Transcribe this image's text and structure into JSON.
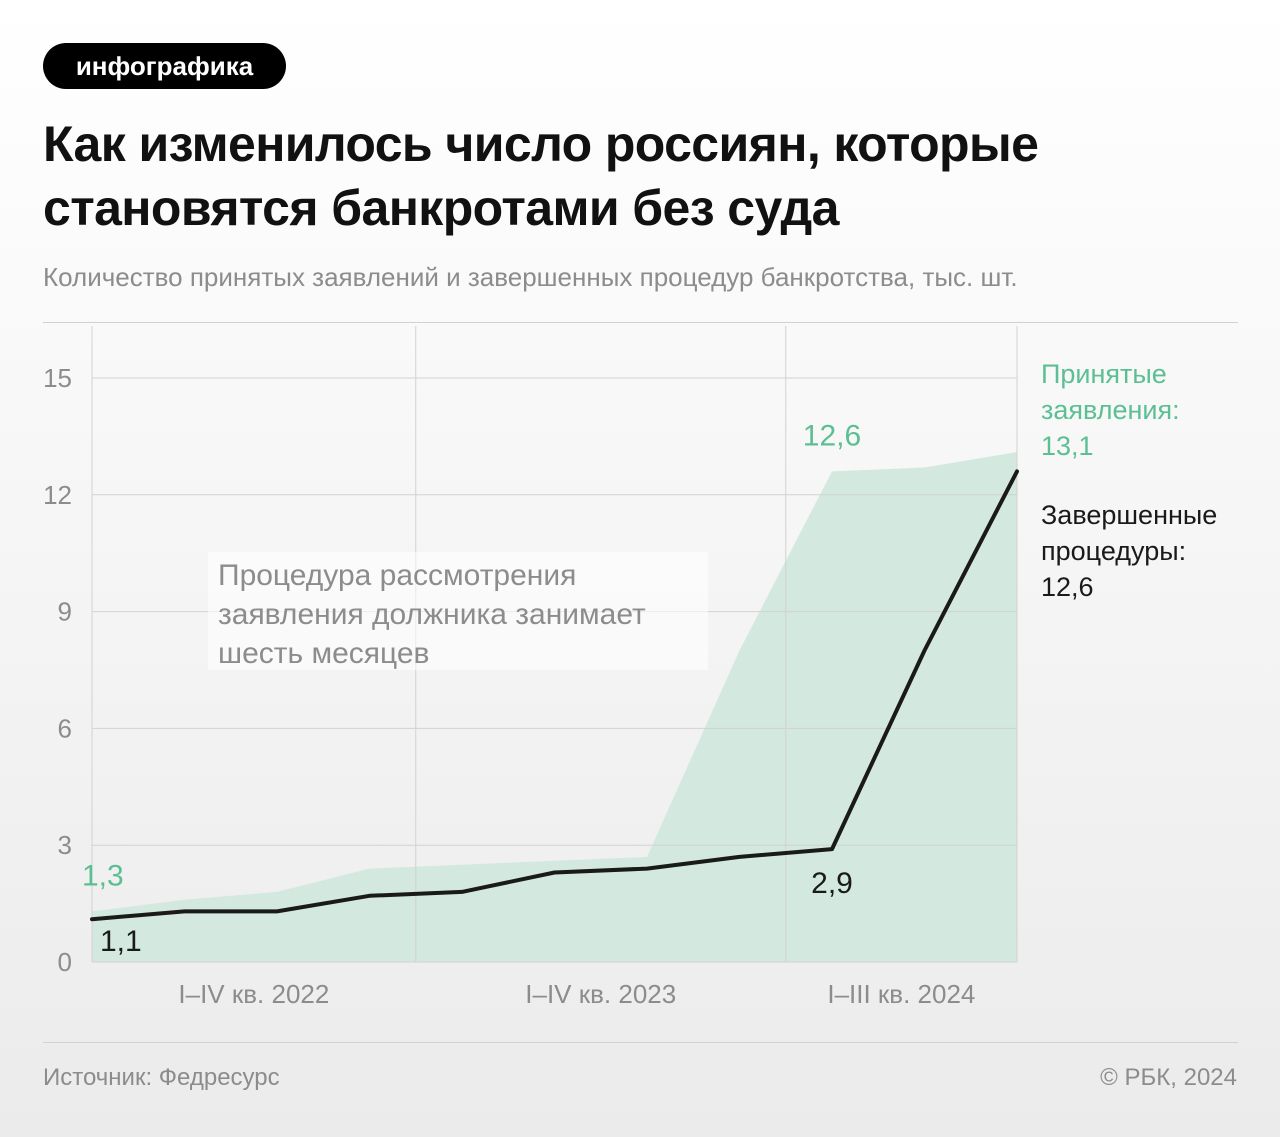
{
  "tag": "инфографика",
  "title_lines": [
    "Как изменилось число россиян, которые",
    "становятся банкротами без суда"
  ],
  "subtitle": "Количество принятых заявлений и завершенных процедур банкротства, тыс. шт.",
  "annotation_lines": [
    "Процедура рассмотрения",
    "заявления должника занимает",
    "шесть месяцев"
  ],
  "legend": {
    "accepted": [
      "Принятые",
      "заявления:",
      "13,1"
    ],
    "completed": [
      "Завершенные",
      "процедуры:",
      "12,6"
    ]
  },
  "footer": {
    "source": "Источник: Федресурс",
    "copyright": "© РБК, 2024"
  },
  "colors": {
    "area": "#d3e8de",
    "accent": "#5cbf94",
    "line": "#1a1a1a",
    "grid": "#d2d2d2"
  },
  "chart_data": {
    "type": "area",
    "x_periods": [
      "I кв. 2022",
      "II кв. 2022",
      "III кв. 2022",
      "IV кв. 2022",
      "I кв. 2023",
      "II кв. 2023",
      "III кв. 2023",
      "IV кв. 2023",
      "I кв. 2024",
      "II кв. 2024",
      "III кв. 2024"
    ],
    "series": [
      {
        "name": "Принятые заявления",
        "kind": "area",
        "values": [
          1.3,
          1.6,
          1.8,
          2.4,
          2.5,
          2.6,
          2.7,
          8.0,
          12.6,
          12.7,
          13.1
        ]
      },
      {
        "name": "Завершенные процедуры",
        "kind": "line",
        "values": [
          1.1,
          1.3,
          1.3,
          1.7,
          1.8,
          2.3,
          2.4,
          2.7,
          2.9,
          8.0,
          12.6
        ]
      }
    ],
    "category_groups": [
      {
        "label": "I–IV кв. 2022",
        "start": 0,
        "end": 3.5
      },
      {
        "label": "I–IV кв. 2023",
        "start": 3.5,
        "end": 7.5
      },
      {
        "label": "I–III кв. 2024",
        "start": 7.5,
        "end": 10
      }
    ],
    "y_ticks": [
      0,
      3,
      6,
      9,
      12,
      15
    ],
    "ylim": [
      0,
      15
    ],
    "data_labels": [
      {
        "series": 0,
        "index": 0,
        "text": "1,3"
      },
      {
        "series": 1,
        "index": 0,
        "text": "1,1"
      },
      {
        "series": 0,
        "index": 8,
        "text": "12,6"
      },
      {
        "series": 1,
        "index": 8,
        "text": "2,9"
      }
    ],
    "grid": true,
    "legend_position": "right"
  }
}
